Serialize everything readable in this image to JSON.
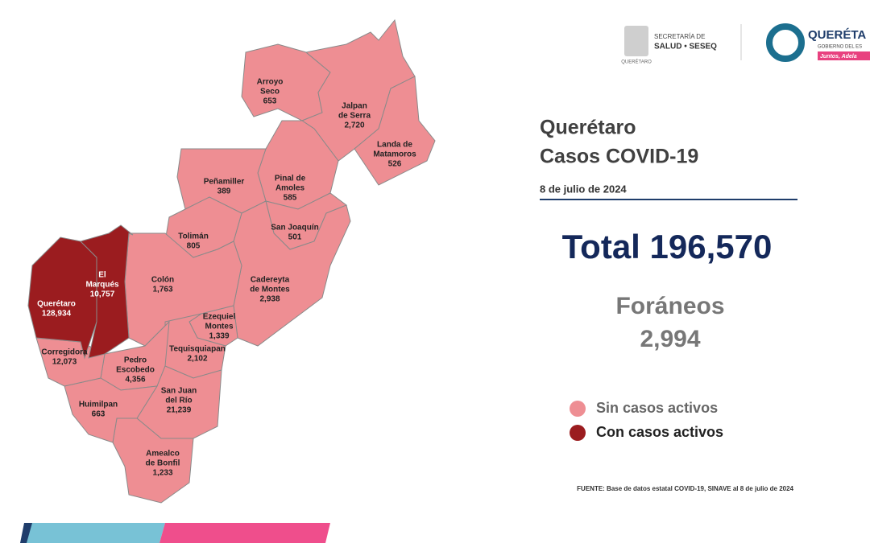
{
  "header": {
    "logo_left": [
      "SECRETARÍA DE",
      "SALUD • SESEQ",
      "QUERÉTARO"
    ],
    "logo_right": [
      "QUERÉTA",
      "GOBIERNO DEL ES",
      "Juntos, Adela"
    ]
  },
  "title": [
    "Querétaro",
    "Casos COVID-19"
  ],
  "date": "8 de julio de 2024",
  "total": "Total 196,570",
  "foraneos": {
    "label": "Foráneos",
    "value": "2,994"
  },
  "legend": [
    {
      "label": "Sin casos activos",
      "color": "#ee8e93"
    },
    {
      "label": "Con casos activos",
      "color": "#9b1c1f"
    }
  ],
  "source": "FUENTE: Base de datos estatal  COVID-19,  SINAVE  al 8 de julio de 2024",
  "municipalities": [
    {
      "name": [
        "Arroyo",
        "Seco"
      ],
      "cases": "653",
      "active": false
    },
    {
      "name": [
        "Jalpan",
        "de Serra"
      ],
      "cases": "2,720",
      "active": false
    },
    {
      "name": [
        "Landa de",
        "Matamoros"
      ],
      "cases": "526",
      "active": false
    },
    {
      "name": [
        "Pinal de",
        "Amoles"
      ],
      "cases": "585",
      "active": false
    },
    {
      "name": [
        "Peñamiller"
      ],
      "cases": "389",
      "active": false
    },
    {
      "name": [
        "San Joaquín"
      ],
      "cases": "501",
      "active": false
    },
    {
      "name": [
        "Cadereyta",
        "de Montes"
      ],
      "cases": "2,938",
      "active": false
    },
    {
      "name": [
        "Tolimán"
      ],
      "cases": "805",
      "active": false
    },
    {
      "name": [
        "Colón"
      ],
      "cases": "1,763",
      "active": false
    },
    {
      "name": [
        "Ezequiel",
        "Montes"
      ],
      "cases": "1,339",
      "active": false
    },
    {
      "name": [
        "Tequisquiapan"
      ],
      "cases": "2,102",
      "active": false
    },
    {
      "name": [
        "Pedro",
        "Escobedo"
      ],
      "cases": "4,356",
      "active": false
    },
    {
      "name": [
        "San Juan",
        "del Río"
      ],
      "cases": "21,239",
      "active": false
    },
    {
      "name": [
        "Amealco",
        "de Bonfil"
      ],
      "cases": "1,233",
      "active": false
    },
    {
      "name": [
        "Huimilpan"
      ],
      "cases": "663",
      "active": false
    },
    {
      "name": [
        "Corregidora"
      ],
      "cases": "12,073",
      "active": false
    },
    {
      "name": [
        "Querétaro"
      ],
      "cases": "128,934",
      "active": true
    },
    {
      "name": [
        "El",
        "Marqués"
      ],
      "cases": "10,757",
      "active": true
    }
  ]
}
